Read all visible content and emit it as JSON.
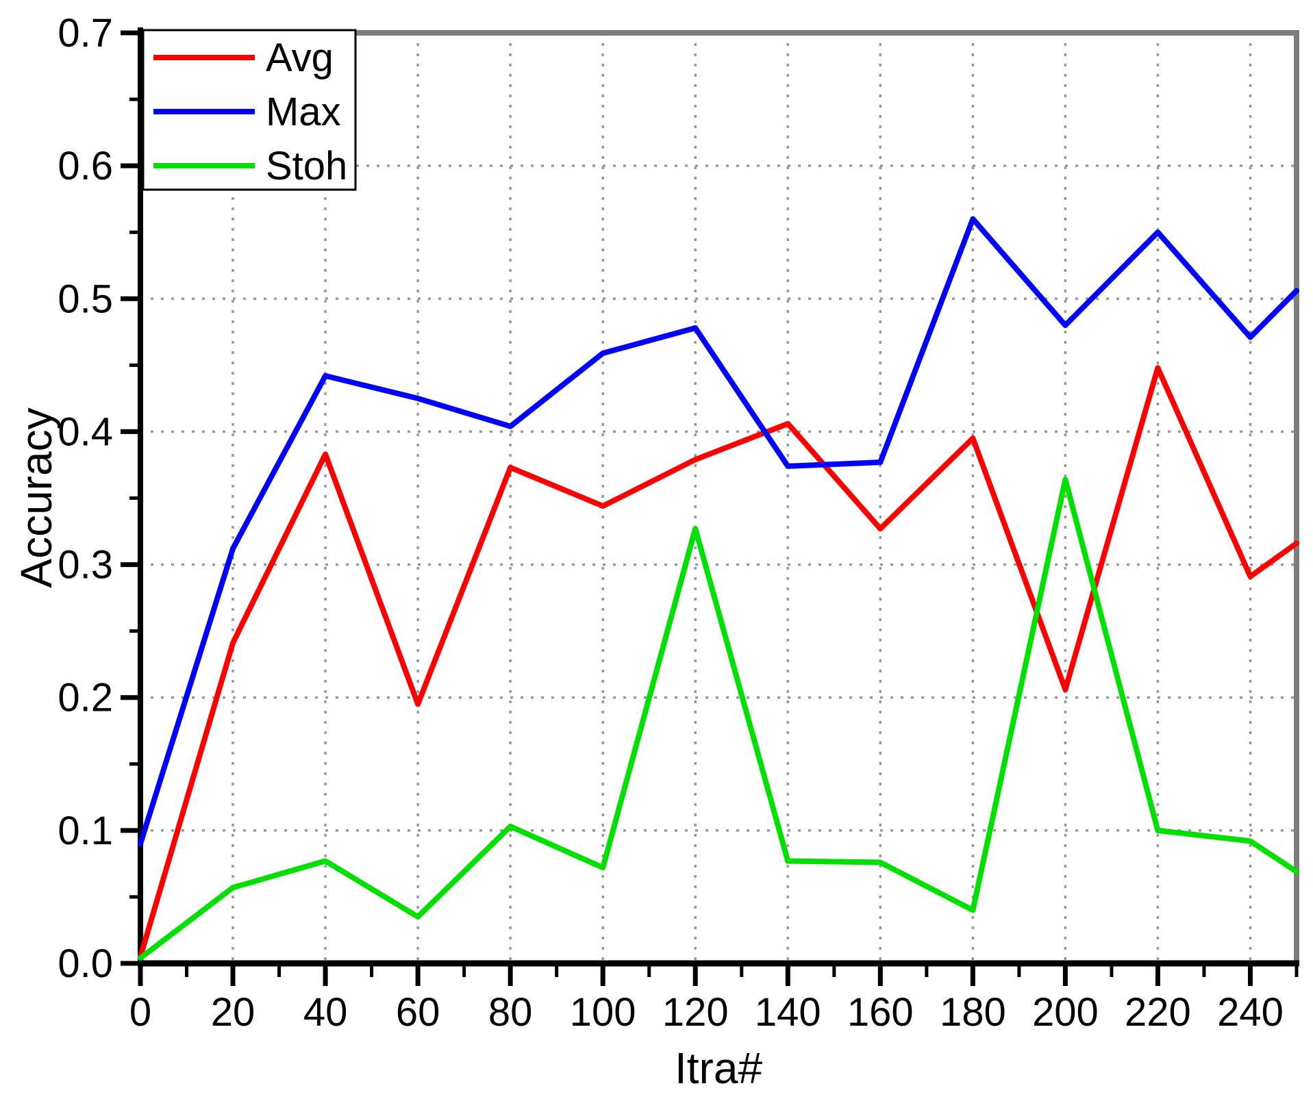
{
  "chart_data": {
    "type": "line",
    "title": "",
    "xlabel": "Itra#",
    "ylabel": "Accuracy",
    "xlim": [
      0,
      250
    ],
    "ylim": [
      0.0,
      0.7
    ],
    "x_major_ticks": [
      0,
      20,
      40,
      60,
      80,
      100,
      120,
      140,
      160,
      180,
      200,
      220,
      240
    ],
    "x_minor_ticks": [
      10,
      30,
      50,
      70,
      90,
      110,
      130,
      150,
      170,
      190,
      210,
      230,
      250
    ],
    "y_major_ticks": [
      0.0,
      0.1,
      0.2,
      0.3,
      0.4,
      0.5,
      0.6,
      0.7
    ],
    "y_minor_ticks": [
      0.05,
      0.15,
      0.25,
      0.35,
      0.45,
      0.55,
      0.65
    ],
    "x_tick_labels": [
      "0",
      "20",
      "40",
      "60",
      "80",
      "100",
      "120",
      "140",
      "160",
      "180",
      "200",
      "220",
      "240"
    ],
    "y_tick_labels": [
      "0.0",
      "0.1",
      "0.2",
      "0.3",
      "0.4",
      "0.5",
      "0.6",
      "0.7"
    ],
    "grid": true,
    "grid_style": "dotted",
    "legend_position": "top-left",
    "x": [
      0,
      20,
      40,
      60,
      80,
      100,
      120,
      140,
      160,
      180,
      200,
      220,
      240,
      250
    ],
    "series": [
      {
        "name": "Avg",
        "color": "#ff0000",
        "values": [
          0.005,
          0.241,
          0.383,
          0.195,
          0.373,
          0.344,
          0.379,
          0.406,
          0.327,
          0.395,
          0.206,
          0.448,
          0.291,
          0.316
        ]
      },
      {
        "name": "Max",
        "color": "#0000ff",
        "values": [
          0.09,
          0.312,
          0.442,
          0.425,
          0.404,
          0.459,
          0.478,
          0.374,
          0.377,
          0.56,
          0.48,
          0.55,
          0.471,
          0.506
        ]
      },
      {
        "name": "Stoh",
        "color": "#00e000",
        "values": [
          0.004,
          0.057,
          0.077,
          0.035,
          0.103,
          0.072,
          0.327,
          0.077,
          0.076,
          0.04,
          0.364,
          0.1,
          0.092,
          0.069
        ]
      }
    ]
  },
  "colors": {
    "axis": "#000000",
    "frame_gray": "#7d7d7d",
    "grid": "#999999",
    "background": "#ffffff",
    "legend_border": "#000000"
  }
}
